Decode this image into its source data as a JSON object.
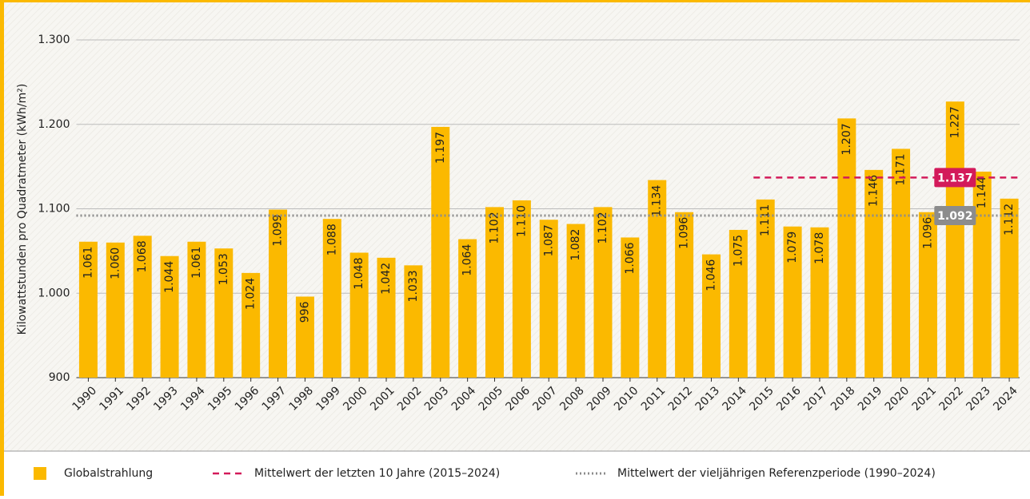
{
  "chart_data": {
    "type": "bar",
    "y_label": "Kilowattstunden pro Quadratmeter (kWh/m²)",
    "categories": [
      "1990",
      "1991",
      "1992",
      "1993",
      "1994",
      "1995",
      "1996",
      "1997",
      "1998",
      "1999",
      "2000",
      "2001",
      "2002",
      "2003",
      "2004",
      "2005",
      "2006",
      "2007",
      "2008",
      "2009",
      "2010",
      "2011",
      "2012",
      "2013",
      "2014",
      "2015",
      "2016",
      "2017",
      "2018",
      "2019",
      "2020",
      "2021",
      "2022",
      "2023",
      "2024"
    ],
    "series": [
      {
        "name": "Globalstrahlung",
        "color": "#fbb900",
        "values": [
          1061,
          1060,
          1068,
          1044,
          1061,
          1053,
          1024,
          1099,
          996,
          1088,
          1048,
          1042,
          1033,
          1197,
          1064,
          1102,
          1110,
          1087,
          1082,
          1102,
          1066,
          1134,
          1096,
          1046,
          1075,
          1111,
          1079,
          1078,
          1207,
          1146,
          1171,
          1096,
          1227,
          1144,
          1112
        ],
        "value_labels": [
          "1.061",
          "1.060",
          "1.068",
          "1.044",
          "1.061",
          "1.053",
          "1.024",
          "1.099",
          "996",
          "1.088",
          "1.048",
          "1.042",
          "1.033",
          "1.197",
          "1.064",
          "1.102",
          "1.110",
          "1.087",
          "1.082",
          "1.102",
          "1.066",
          "1.134",
          "1.096",
          "1.046",
          "1.075",
          "1.111",
          "1.079",
          "1.078",
          "1.207",
          "1.146",
          "1.171",
          "1.096",
          "1.227",
          "1.144",
          "1.112"
        ]
      }
    ],
    "reference_lines": [
      {
        "name": "Mittelwert der letzten 10 Jahre (2015–2024)",
        "value": 1137,
        "value_label": "1.137",
        "color": "#d31a5a",
        "style": "dashed",
        "from": "2015"
      },
      {
        "name": "Mittelwert der vieljährigen Referenzperiode (1990–2024)",
        "value": 1092,
        "value_label": "1.092",
        "color": "#8c8c8c",
        "style": "dotted",
        "from": "1990"
      }
    ],
    "ylim": [
      900,
      1300
    ],
    "yticks": [
      900,
      {
        "value": 1000,
        "label": "1.000"
      },
      {
        "value": 1100,
        "label": "1.100"
      },
      {
        "value": 1200,
        "label": "1.200"
      },
      {
        "value": 1300,
        "label": "1.300"
      }
    ],
    "grid": true
  }
}
